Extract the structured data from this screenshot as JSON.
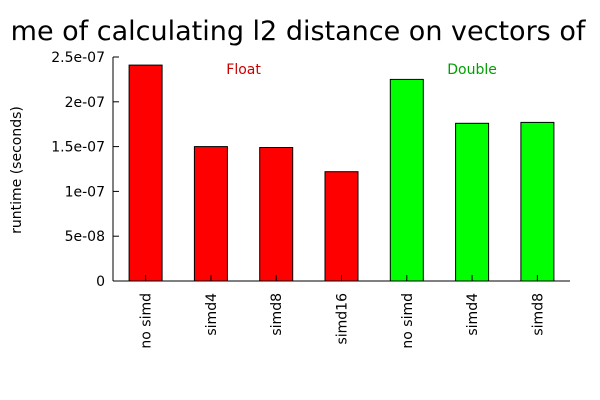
{
  "chart_data": {
    "type": "bar",
    "title": "me of calculating l2 distance on vectors of",
    "ylabel": "runtime (seconds)",
    "xlabel": "",
    "ylim": [
      0,
      2.5e-07
    ],
    "yticks": [
      {
        "value": 0,
        "label": "0"
      },
      {
        "value": 5e-08,
        "label": "5e-08"
      },
      {
        "value": 1e-07,
        "label": "1e-07"
      },
      {
        "value": 1.5e-07,
        "label": "1.5e-07"
      },
      {
        "value": 2e-07,
        "label": "2e-07"
      },
      {
        "value": 2.5e-07,
        "label": "2.5e-07"
      }
    ],
    "categories": [
      "no simd",
      "simd4",
      "simd8",
      "simd16",
      "no simd",
      "simd4",
      "simd8"
    ],
    "values": [
      2.41e-07,
      1.5e-07,
      1.49e-07,
      1.22e-07,
      2.25e-07,
      1.76e-07,
      1.77e-07
    ],
    "group_labels": [
      {
        "text": "Float",
        "color": "#cc0000",
        "over_categories": [
          0,
          3
        ]
      },
      {
        "text": "Double",
        "color": "#00a000",
        "over_categories": [
          4,
          6
        ]
      }
    ],
    "groups": [
      {
        "text": "Float",
        "categories": [
          "no simd",
          "simd4",
          "simd8",
          "simd16"
        ],
        "values": [
          2.41e-07,
          1.5e-07,
          1.49e-07,
          1.22e-07
        ],
        "color": "#ff0000"
      },
      {
        "text": "Double",
        "categories": [
          "no simd",
          "simd4",
          "simd8"
        ],
        "values": [
          2.25e-07,
          1.76e-07,
          1.77e-07
        ],
        "color": "#00ff00"
      }
    ],
    "bar_colors": [
      "#ff0000",
      "#ff0000",
      "#ff0000",
      "#ff0000",
      "#00ff00",
      "#00ff00",
      "#00ff00"
    ],
    "grid": false
  }
}
